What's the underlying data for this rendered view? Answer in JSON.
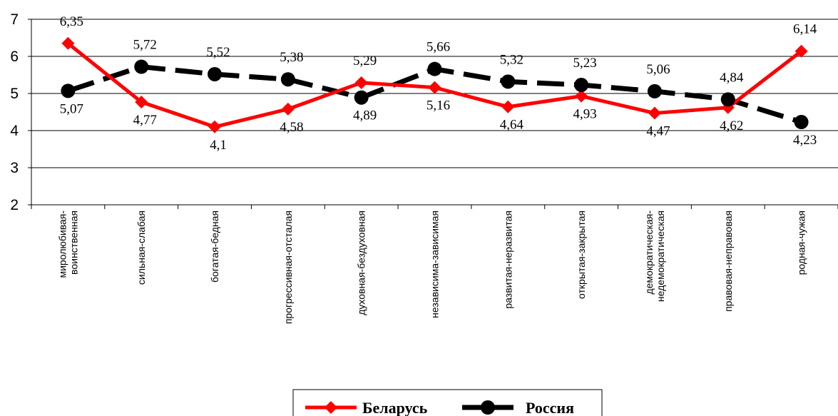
{
  "chart_data": {
    "type": "line",
    "categories": [
      [
        "миролюбивая-",
        "воинственная"
      ],
      [
        "сильная-слабая"
      ],
      [
        "богатая-бедная"
      ],
      [
        "прогрессивная-отсталая"
      ],
      [
        "духовная-бездуховная"
      ],
      [
        "независима-зависимая"
      ],
      [
        "развитая-неразвитая"
      ],
      [
        "открытая-закрытая"
      ],
      [
        "демократическая-",
        "недемократическая"
      ],
      [
        "правовая-неправовая"
      ],
      [
        "родная-чужая"
      ]
    ],
    "series": [
      {
        "name": "Беларусь",
        "color": "#ff0000",
        "marker": "diamond",
        "line_style": "solid",
        "values": [
          6.35,
          4.77,
          4.1,
          4.58,
          5.29,
          5.16,
          4.64,
          4.93,
          4.47,
          4.62,
          6.14
        ],
        "labels": [
          "6,35",
          "4,77",
          "4,1",
          "4,58",
          "5,29",
          "5,16",
          "4,64",
          "4,93",
          "4,47",
          "4,62",
          "6,14"
        ]
      },
      {
        "name": "Россия",
        "color": "#000000",
        "marker": "circle",
        "line_style": "dashed",
        "values": [
          5.07,
          5.72,
          5.52,
          5.38,
          4.89,
          5.66,
          5.32,
          5.23,
          5.06,
          4.84,
          4.23
        ],
        "labels": [
          "5,07",
          "5,72",
          "5,52",
          "5,38",
          "4,89",
          "5,66",
          "5,32",
          "5,23",
          "5,06",
          "4,84",
          "4,23"
        ]
      }
    ],
    "yticks": [
      2,
      3,
      4,
      5,
      6,
      7
    ],
    "ylim": [
      2,
      7
    ],
    "grid": true,
    "legend_position": "bottom-center"
  }
}
